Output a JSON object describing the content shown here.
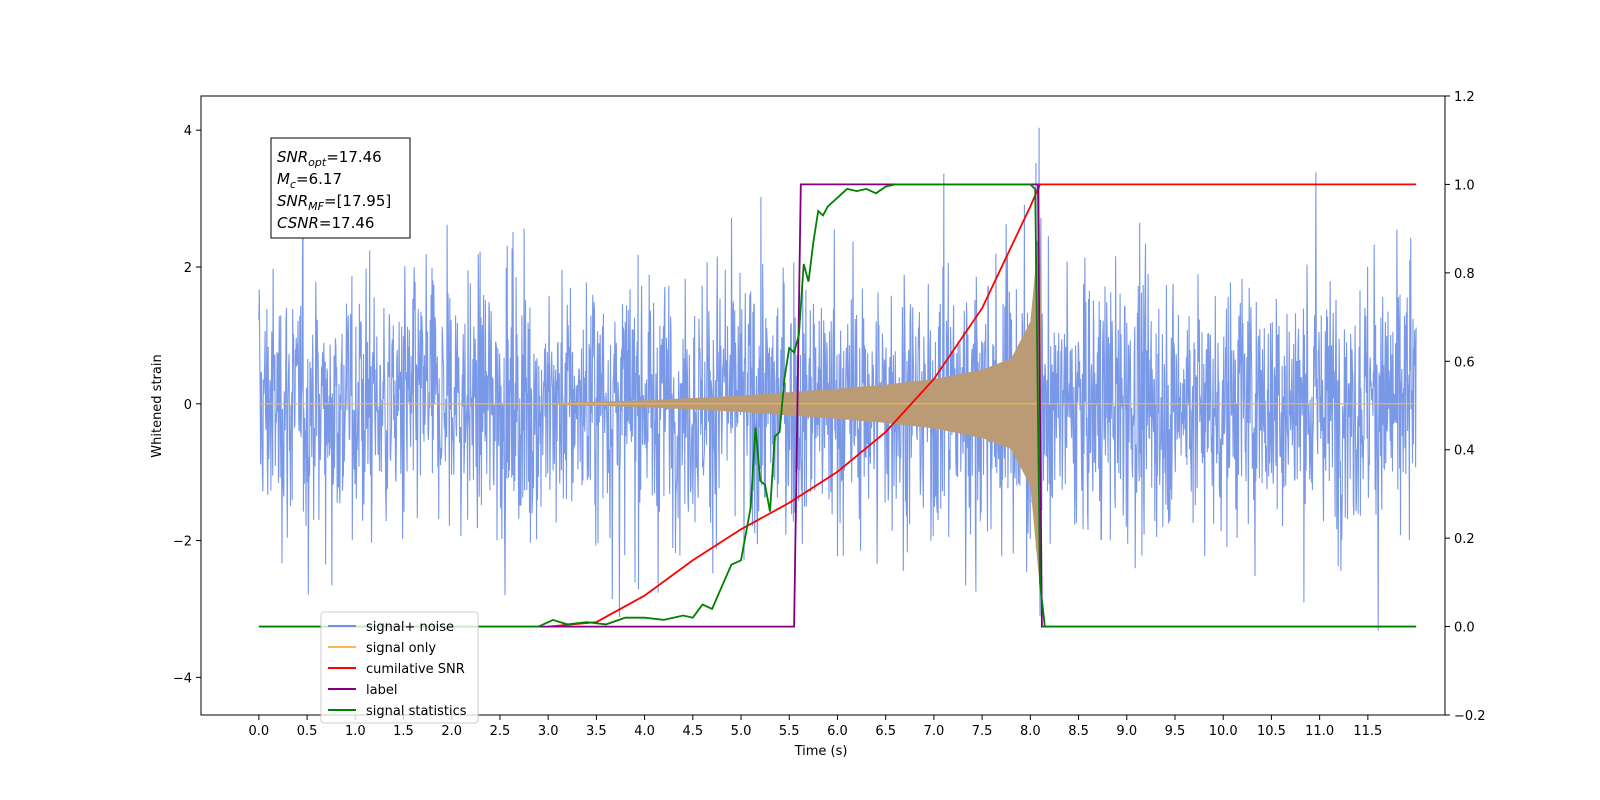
{
  "chart_data": {
    "type": "line",
    "title": "",
    "xlabel": "Time (s)",
    "ylabel": "Whitened strain",
    "xlim": [
      -0.6,
      12.3
    ],
    "ylim": [
      -4.55,
      4.5
    ],
    "y2lim": [
      -0.2,
      1.2
    ],
    "x_ticks": [
      "0.0",
      "0.5",
      "1.0",
      "1.5",
      "2.0",
      "2.5",
      "3.0",
      "3.5",
      "4.0",
      "4.5",
      "5.0",
      "5.5",
      "6.0",
      "6.5",
      "7.0",
      "7.5",
      "8.0",
      "8.5",
      "9.0",
      "9.5",
      "10.0",
      "10.5",
      "11.0",
      "11.5"
    ],
    "y_ticks": [
      -4,
      -2,
      0,
      2,
      4
    ],
    "y2_ticks": [
      "−0.2",
      "0.0",
      "0.2",
      "0.4",
      "0.6",
      "0.8",
      "1.0",
      "1.2"
    ],
    "grid": false,
    "legend_position": "bottom-left",
    "annotation": {
      "lines": [
        {
          "var": "SNR",
          "sub": "opt",
          "value": "=17.46"
        },
        {
          "var": "M",
          "sub": "c",
          "value": "=6.17"
        },
        {
          "var": "SNR",
          "sub": "MF",
          "value": "=[17.95]"
        },
        {
          "var": "CSNR",
          "sub": "",
          "value": "=17.46"
        }
      ]
    },
    "noise": {
      "x_range": [
        0.0,
        12.0
      ],
      "typical_amplitude": 2.2,
      "max_amplitude": 4.1,
      "min_amplitude": -4.1
    },
    "signal_envelope": {
      "x": [
        0.0,
        3.0,
        4.0,
        5.0,
        5.6,
        6.0,
        6.5,
        7.0,
        7.5,
        7.8,
        8.0,
        8.1,
        8.12,
        12.0
      ],
      "amplitude": [
        0.0,
        0.01,
        0.05,
        0.12,
        0.18,
        0.22,
        0.28,
        0.36,
        0.5,
        0.66,
        1.2,
        2.7,
        0.0,
        0.0
      ]
    },
    "series": [
      {
        "name": "signal+ noise",
        "color": "#6e8fe6",
        "axis": "left",
        "style": "noise"
      },
      {
        "name": "signal only",
        "color": "#f5b94e",
        "axis": "left",
        "style": "chirp"
      },
      {
        "name": "cumilative SNR",
        "color": "#ff0000",
        "axis": "right",
        "x": [
          3.0,
          3.5,
          4.0,
          4.5,
          5.0,
          5.5,
          6.0,
          6.5,
          7.0,
          7.5,
          8.0,
          8.1,
          12.0
        ],
        "y": [
          0.0,
          0.01,
          0.07,
          0.15,
          0.22,
          0.28,
          0.35,
          0.44,
          0.56,
          0.72,
          0.95,
          1.0,
          1.0
        ]
      },
      {
        "name": "label",
        "color": "#800080",
        "axis": "right",
        "x": [
          0.0,
          5.55,
          5.62,
          8.08,
          8.12,
          12.0
        ],
        "y": [
          0.0,
          0.0,
          1.0,
          1.0,
          0.0,
          0.0
        ]
      },
      {
        "name": "signal statistics",
        "color": "#008000",
        "axis": "right",
        "x": [
          0.0,
          2.9,
          3.05,
          3.2,
          3.4,
          3.6,
          3.8,
          4.0,
          4.2,
          4.4,
          4.5,
          4.6,
          4.7,
          4.8,
          4.9,
          5.0,
          5.1,
          5.15,
          5.2,
          5.25,
          5.3,
          5.35,
          5.4,
          5.45,
          5.5,
          5.55,
          5.6,
          5.65,
          5.7,
          5.75,
          5.8,
          5.85,
          5.9,
          6.0,
          6.1,
          6.2,
          6.3,
          6.4,
          6.5,
          6.6,
          6.7,
          8.0,
          8.05,
          8.1,
          8.15,
          8.2,
          12.0
        ],
        "y": [
          0.0,
          0.0,
          0.015,
          0.005,
          0.01,
          0.005,
          0.02,
          0.02,
          0.015,
          0.025,
          0.02,
          0.05,
          0.04,
          0.09,
          0.14,
          0.15,
          0.27,
          0.45,
          0.33,
          0.32,
          0.26,
          0.43,
          0.44,
          0.56,
          0.63,
          0.62,
          0.66,
          0.82,
          0.78,
          0.87,
          0.94,
          0.93,
          0.95,
          0.97,
          0.99,
          0.985,
          0.99,
          0.98,
          0.995,
          1.0,
          1.0,
          1.0,
          0.99,
          0.1,
          0.0,
          0.0,
          0.0
        ]
      }
    ]
  }
}
